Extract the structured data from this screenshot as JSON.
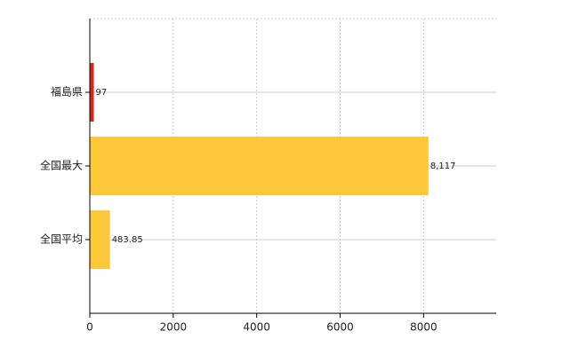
{
  "chart_data": {
    "type": "bar",
    "orientation": "horizontal",
    "categories": [
      "福島県",
      "全国最大",
      "全国平均"
    ],
    "values": [
      97,
      8117,
      483.85
    ],
    "value_labels": [
      "97",
      "8,117",
      "483.85"
    ],
    "colors": [
      "#d42a1e",
      "#fdc93a",
      "#fdc93a"
    ],
    "xlim": [
      0,
      9740
    ],
    "xticks": [
      0,
      2000,
      4000,
      6000,
      8000
    ],
    "grid": true
  }
}
